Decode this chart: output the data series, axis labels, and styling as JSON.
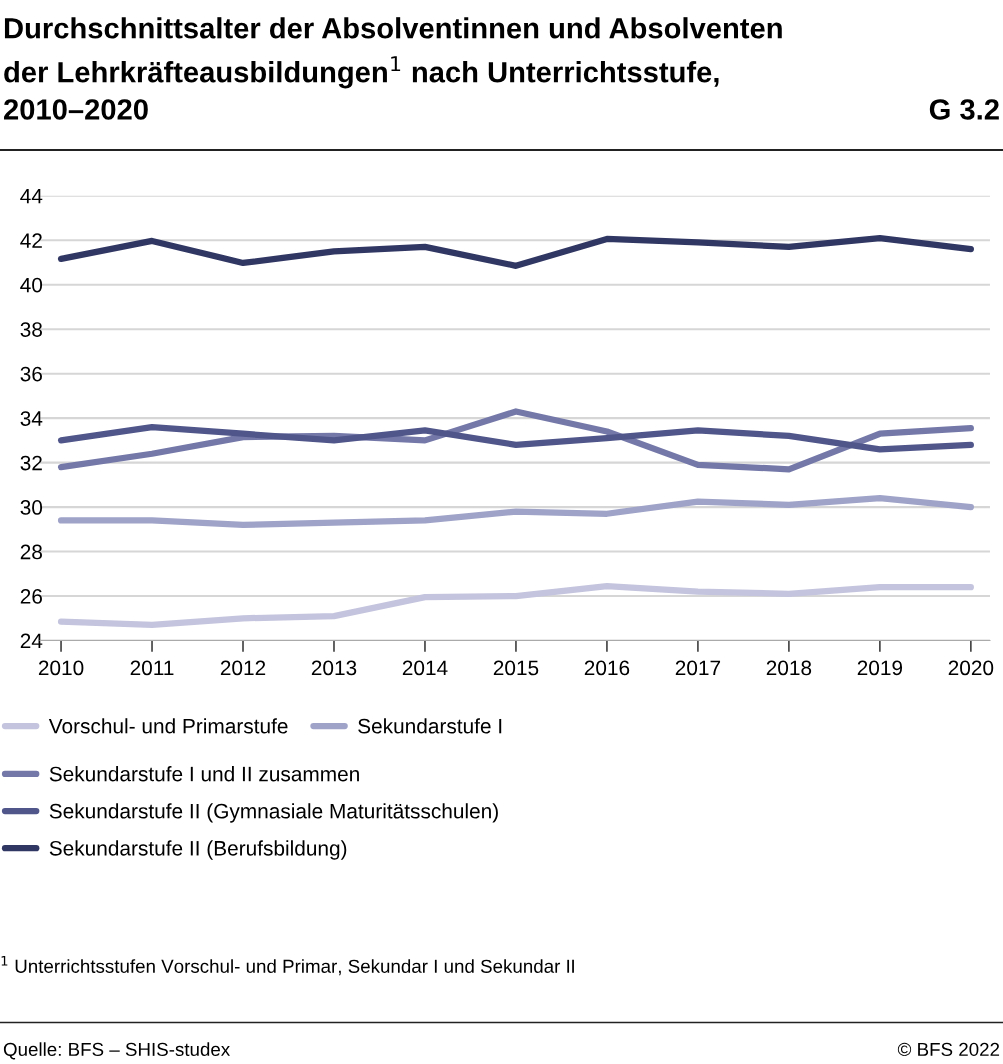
{
  "chart_data": {
    "type": "line",
    "title": "Durchschnittsalter der Absolventinnen und Absolventen\nder Lehrkräfteausbildungen$^{1}$ nach Unterrichtsstufe,\n2010–2020",
    "annotations": [
      "G 3.2",
      "$^{1}$ Unterrichtsstufen Vorschul- und Primar, Sekundar I und Sekundar II",
      "Quelle: BFS – SHIS-studex",
      "© BFS 2022"
    ],
    "x": [
      2010,
      2011,
      2012,
      2013,
      2014,
      2015,
      2016,
      2017,
      2018,
      2019,
      2020
    ],
    "series": [
      {
        "name": "Vorschul- und Primarstufe",
        "color": "#c4c4de",
        "values": [
          24.85,
          24.7,
          25.0,
          25.1,
          25.95,
          26.0,
          26.45,
          26.2,
          26.1,
          26.4,
          26.4
        ]
      },
      {
        "name": "Sekundarstufe I",
        "color": "#9fa3c8",
        "values": [
          29.4,
          29.4,
          29.2,
          29.3,
          29.4,
          29.8,
          29.7,
          30.25,
          30.1,
          30.4,
          30.0
        ]
      },
      {
        "name": "Sekundarstufe I und II zusammen",
        "color": "#7478a8",
        "values": [
          31.8,
          32.4,
          33.15,
          33.2,
          33.0,
          34.3,
          33.4,
          31.9,
          31.7,
          33.3,
          33.55
        ]
      },
      {
        "name": "Sekundarstufe II (Gymnasiale Maturitätsschulen)",
        "color": "#50568a",
        "values": [
          33.0,
          33.6,
          33.3,
          33.0,
          33.45,
          32.8,
          33.1,
          33.45,
          33.2,
          32.6,
          32.8
        ]
      },
      {
        "name": "Sekundarstufe II (Berufsbildung)",
        "color": "#313763",
        "values": [
          41.16,
          41.97,
          40.98,
          41.5,
          41.7,
          40.85,
          42.06,
          41.9,
          41.7,
          42.1,
          41.6
        ]
      }
    ],
    "xlim": [
      2009.77,
      2020.21
    ],
    "xticks": [
      2010,
      2011,
      2012,
      2013,
      2014,
      2015,
      2016,
      2017,
      2018,
      2019,
      2020
    ],
    "ylim": [
      24,
      44
    ],
    "yticks": [
      24,
      26,
      28,
      30,
      32,
      34,
      36,
      38,
      40,
      42,
      44
    ],
    "grid": "y",
    "legend": "bottom",
    "marker": "none",
    "line_style": "solid"
  }
}
